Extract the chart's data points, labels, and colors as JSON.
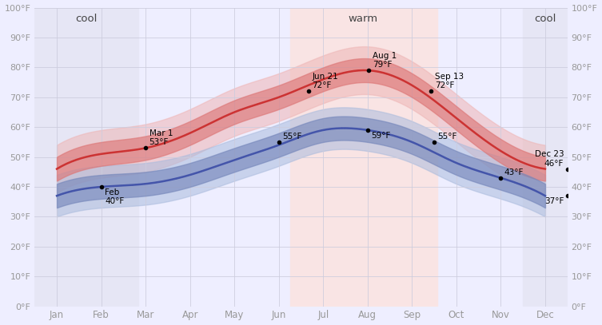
{
  "months": [
    "Jan",
    "Feb",
    "Mar",
    "Apr",
    "May",
    "Jun",
    "Jul",
    "Aug",
    "Sep",
    "Oct",
    "Nov",
    "Dec"
  ],
  "month_positions": [
    0,
    1,
    2,
    3,
    4,
    5,
    6,
    7,
    8,
    9,
    10,
    11
  ],
  "high_avg": [
    46,
    51,
    53,
    58,
    65,
    70,
    76,
    79,
    74,
    63,
    52,
    46
  ],
  "high_inner_upper": [
    50,
    55,
    57,
    62,
    69,
    74,
    80,
    83,
    78,
    67,
    56,
    50
  ],
  "high_inner_lower": [
    42,
    47,
    49,
    54,
    61,
    66,
    72,
    75,
    70,
    59,
    48,
    42
  ],
  "high_outer_upper": [
    54,
    59,
    61,
    66,
    73,
    78,
    84,
    87,
    82,
    71,
    60,
    54
  ],
  "high_outer_lower": [
    38,
    43,
    45,
    50,
    57,
    62,
    68,
    71,
    66,
    55,
    44,
    38
  ],
  "low_avg": [
    37,
    40,
    41,
    44,
    49,
    54,
    59,
    59,
    55,
    48,
    43,
    37
  ],
  "low_inner_upper": [
    41,
    44,
    45,
    48,
    53,
    58,
    63,
    63,
    59,
    52,
    47,
    41
  ],
  "low_inner_lower": [
    33,
    36,
    37,
    40,
    45,
    50,
    55,
    55,
    51,
    44,
    39,
    33
  ],
  "low_outer_upper": [
    44,
    47,
    48,
    51,
    56,
    61,
    66,
    66,
    62,
    55,
    50,
    44
  ],
  "low_outer_lower": [
    30,
    33,
    34,
    37,
    42,
    47,
    52,
    52,
    48,
    41,
    36,
    30
  ],
  "cool_bg_color": "#e6e6f5",
  "warm_bg_color": "#f9e4e4",
  "high_color": "#cc3333",
  "low_color": "#4455aa",
  "high_fill_inner": "#dd7777",
  "high_fill_outer": "#eeb5b5",
  "low_fill_inner": "#7788bb",
  "low_fill_outer": "#aabbdd",
  "bg_color": "#eeeeff",
  "grid_color": "#ccccdd",
  "text_color": "#999999",
  "label_color": "#444444"
}
